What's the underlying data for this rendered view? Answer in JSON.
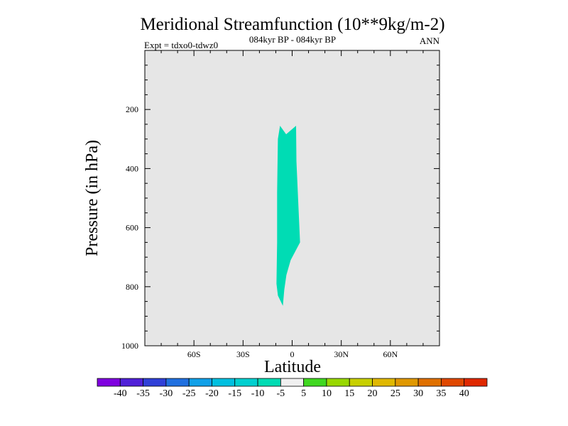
{
  "chart_data": {
    "type": "contour",
    "title": "Meridional Streamfunction (10**9kg/m-2)",
    "subtitle": "084kyr BP - 084kyr BP",
    "left_label": "Expt = tdxo0-tdwz0",
    "right_label": "ANN",
    "xlabel": "Latitude",
    "ylabel": "Pressure (in hPa)",
    "xlim": [
      -90,
      90
    ],
    "ylim": [
      1000,
      0
    ],
    "x_ticks": [
      {
        "value": -60,
        "label": "60S"
      },
      {
        "value": -30,
        "label": "30S"
      },
      {
        "value": 0,
        "label": "0"
      },
      {
        "value": 30,
        "label": "30N"
      },
      {
        "value": 60,
        "label": "60N"
      }
    ],
    "y_ticks": [
      {
        "value": 200,
        "label": "200"
      },
      {
        "value": 400,
        "label": "400"
      },
      {
        "value": 600,
        "label": "600"
      },
      {
        "value": 800,
        "label": "800"
      },
      {
        "value": 1000,
        "label": "1000"
      }
    ],
    "background_color": "#e6e6e6",
    "regions": [
      {
        "level": [
          -10,
          -5
        ],
        "color": "#00dcb4",
        "outline": [
          [
            -7.4,
            255
          ],
          [
            -3.7,
            284
          ],
          [
            2.4,
            255
          ],
          [
            2.6,
            375
          ],
          [
            4.8,
            650
          ],
          [
            -0.9,
            710
          ],
          [
            -3.5,
            760
          ],
          [
            -4.8,
            810
          ],
          [
            -5.7,
            865
          ],
          [
            -8.7,
            830
          ],
          [
            -9.6,
            790
          ],
          [
            -9.2,
            650
          ],
          [
            -9.2,
            480
          ],
          [
            -8.7,
            300
          ]
        ]
      }
    ],
    "colorbar": {
      "colors": [
        "#8000e0",
        "#5020d8",
        "#3040d8",
        "#2070e0",
        "#10a0e8",
        "#00c0e0",
        "#00d0d0",
        "#00dcb4",
        "#f0f0f0",
        "#40d820",
        "#98d800",
        "#c8d000",
        "#e0b800",
        "#e09800",
        "#e07000",
        "#e04800",
        "#e02800"
      ],
      "labels": [
        "-40",
        "-35",
        "-30",
        "-25",
        "-20",
        "-15",
        "-10",
        "-5",
        "5",
        "10",
        "15",
        "20",
        "25",
        "30",
        "35",
        "40"
      ]
    }
  }
}
